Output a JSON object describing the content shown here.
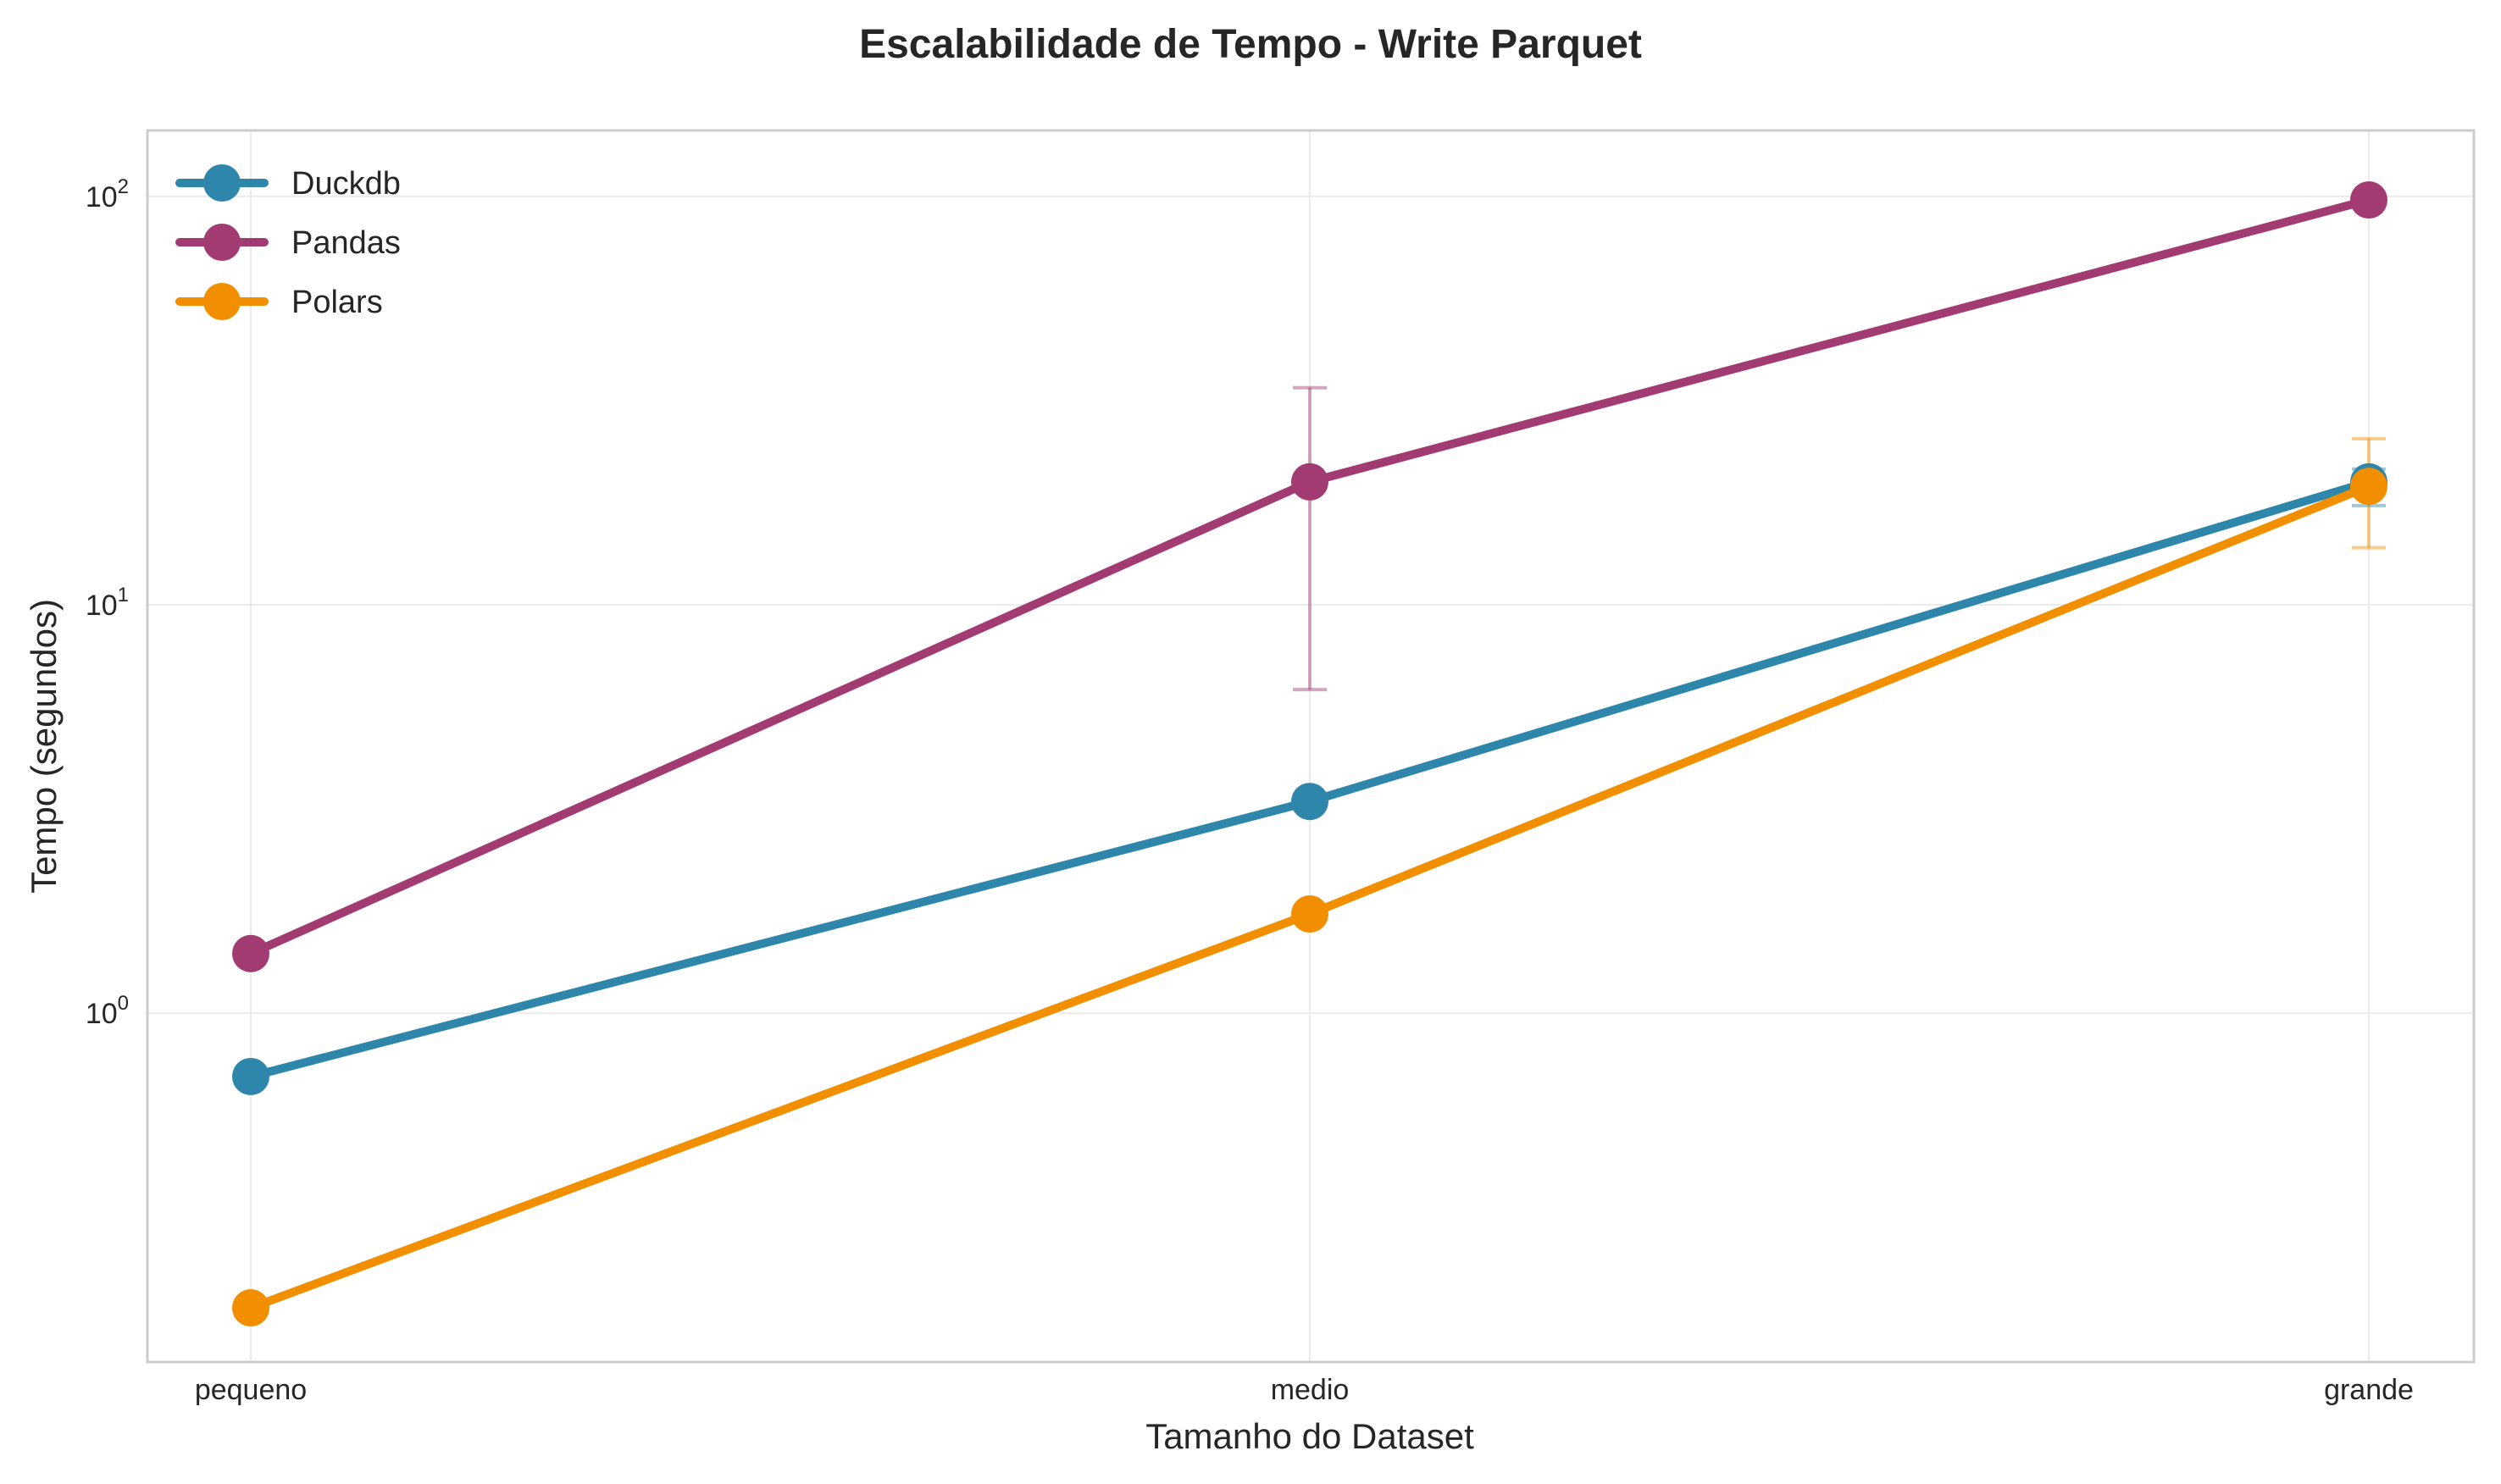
{
  "chart_data": {
    "type": "line",
    "title": "Escalabilidade de Tempo - Write Parquet",
    "xlabel": "Tamanho do Dataset",
    "ylabel": "Tempo (segundos)",
    "categories": [
      "pequeno",
      "medio",
      "grande"
    ],
    "yscale": "log",
    "ylim": [
      0.14,
      145
    ],
    "yticks": [
      {
        "value": 1,
        "base": "10",
        "exp": "0"
      },
      {
        "value": 10,
        "base": "10",
        "exp": "1"
      },
      {
        "value": 100,
        "base": "10",
        "exp": "2"
      }
    ],
    "grid": true,
    "legend_position": "top-left",
    "series": [
      {
        "name": "Duckdb",
        "color": "#2e86ab",
        "values": [
          0.7,
          3.3,
          20.0
        ],
        "error": [
          null,
          null,
          [
            17.5,
            21.5
          ]
        ]
      },
      {
        "name": "Pandas",
        "color": "#a23b72",
        "values": [
          1.4,
          20.0,
          98.0
        ],
        "error": [
          null,
          [
            6.2,
            34.0
          ],
          null
        ]
      },
      {
        "name": "Polars",
        "color": "#f18f01",
        "values": [
          0.19,
          1.75,
          19.5
        ],
        "error": [
          null,
          null,
          [
            13.8,
            25.5
          ]
        ]
      }
    ]
  }
}
